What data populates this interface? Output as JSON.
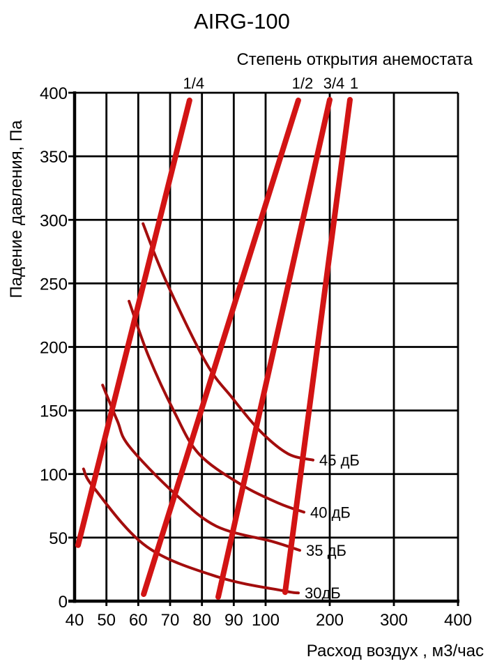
{
  "chart_data": {
    "type": "line",
    "title": "AIRG-100",
    "subtitle": "Степень открытия анемостата",
    "xlabel": "Расход воздух , м3/час",
    "ylabel": "Падение давления, Па",
    "x_ticks": [
      40,
      50,
      60,
      70,
      80,
      90,
      100,
      200,
      300,
      400
    ],
    "y_ticks": [
      0,
      50,
      100,
      150,
      200,
      250,
      300,
      350,
      400
    ],
    "xlim": [
      40,
      400
    ],
    "ylim": [
      0,
      400
    ],
    "grid": true,
    "x_scale_note": "segmented pseudo-log: 40-100 step 10 equal spacing, 100-400 step 100 double spacing",
    "legend_position": "labels at line ends",
    "colors": {
      "grid": "#000000",
      "opening_lines": "#d21414",
      "noise_curves": "#a30d0d",
      "text": "#000000",
      "background": "#ffffff"
    },
    "opening_series": [
      {
        "label": "1/4",
        "points": [
          [
            41.1,
            44
          ],
          [
            76.1,
            394
          ]
        ]
      },
      {
        "label": "1/2",
        "points": [
          [
            61.7,
            5.5
          ],
          [
            100,
            312
          ],
          [
            151,
            394
          ]
        ]
      },
      {
        "label": "3/4",
        "points": [
          [
            85.1,
            3.3
          ],
          [
            100,
            169.5
          ],
          [
            200,
            394.5
          ]
        ]
      },
      {
        "label": "1",
        "points": [
          [
            130.4,
            7
          ],
          [
            231.5,
            394.5
          ]
        ]
      }
    ],
    "noise_series": [
      {
        "label": "45 дБ",
        "points": [
          [
            61.5,
            297
          ],
          [
            68.5,
            253
          ],
          [
            81.2,
            188
          ],
          [
            89.5,
            160
          ],
          [
            98.2,
            134
          ],
          [
            134.8,
            116
          ],
          [
            173.9,
            111
          ]
        ]
      },
      {
        "label": "40 дБ",
        "points": [
          [
            57.1,
            236
          ],
          [
            63.2,
            193
          ],
          [
            71.3,
            149
          ],
          [
            79,
            116
          ],
          [
            92.1,
            92
          ],
          [
            120.7,
            77
          ],
          [
            159.8,
            70
          ]
        ]
      },
      {
        "label": "35 дБ",
        "points": [
          [
            48.8,
            170
          ],
          [
            53.4,
            142
          ],
          [
            57.1,
            122
          ],
          [
            71.3,
            85
          ],
          [
            84.5,
            59
          ],
          [
            110,
            47
          ],
          [
            153.3,
            40
          ]
        ]
      },
      {
        "label": "30дБ",
        "points": [
          [
            42.8,
            104
          ],
          [
            46.1,
            89
          ],
          [
            62.6,
            43
          ],
          [
            85.1,
            19
          ],
          [
            129.3,
            8
          ],
          [
            151.1,
            6.5
          ]
        ]
      }
    ]
  }
}
